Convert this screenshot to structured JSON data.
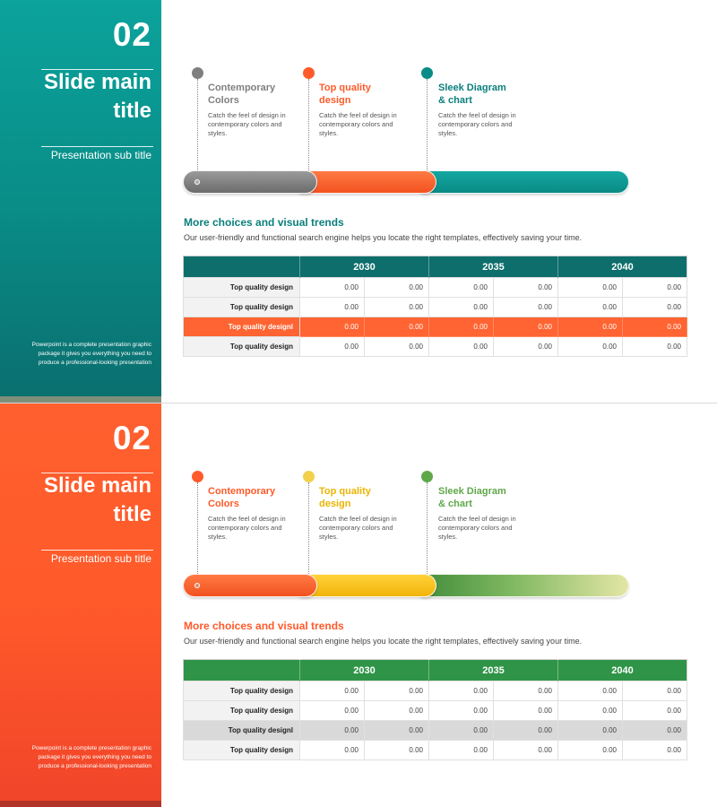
{
  "slides": [
    {
      "number": "02",
      "main_title": "Slide main title",
      "sub_title": "Presentation sub title",
      "blurb": "Powerpoint is a complete presentation graphic package it gives you everything you need to produce a professional-looking presentation",
      "colors": {
        "milestone_1": "#7f7f7f",
        "milestone_2": "#ff5a2a",
        "milestone_3": "#0a8b86",
        "header": "#0e6e6c",
        "highlight_row": "#ff6432",
        "section_title": "#0a7f7c"
      },
      "milestones": [
        {
          "title_line1": "Contemporary",
          "title_line2": "Colors",
          "desc": "Catch the feel of design in contemporary colors and styles."
        },
        {
          "title_line1": "Top quality",
          "title_line2": "design",
          "desc": "Catch the feel of design in contemporary colors and styles."
        },
        {
          "title_line1": "Sleek Diagram",
          "title_line2": "& chart",
          "desc": "Catch the feel of design in contemporary colors and styles."
        }
      ],
      "section_title": "More choices and visual trends",
      "section_desc": "Our user-friendly and functional search engine helps you locate the right templates, effectively saving your time.",
      "table": {
        "years": [
          "2030",
          "2035",
          "2040"
        ],
        "rows": [
          {
            "label": "Top quality design",
            "values": [
              "0.00",
              "0.00",
              "0.00",
              "0.00",
              "0.00",
              "0.00"
            ]
          },
          {
            "label": "Top quality design",
            "values": [
              "0.00",
              "0.00",
              "0.00",
              "0.00",
              "0.00",
              "0.00"
            ]
          },
          {
            "label": "Top quality designl",
            "values": [
              "0.00",
              "0.00",
              "0.00",
              "0.00",
              "0.00",
              "0.00"
            ]
          },
          {
            "label": "Top quality design",
            "values": [
              "0.00",
              "0.00",
              "0.00",
              "0.00",
              "0.00",
              "0.00"
            ]
          }
        ]
      }
    },
    {
      "number": "02",
      "main_title": "Slide main title",
      "sub_title": "Presentation sub title",
      "blurb": "Powerpoint is a complete presentation graphic package it gives you everything you need to produce a professional-looking presentation",
      "colors": {
        "milestone_1": "#ff5a2a",
        "milestone_2": "#f2c21b",
        "milestone_3": "#5fa84a",
        "header": "#2f9447",
        "highlight_row": "#d9d9d9",
        "section_title": "#ff5a2a"
      },
      "milestones": [
        {
          "title_line1": "Contemporary",
          "title_line2": "Colors",
          "desc": "Catch the feel of design in contemporary colors and styles."
        },
        {
          "title_line1": "Top quality",
          "title_line2": "design",
          "desc": "Catch the feel of design in contemporary colors and styles."
        },
        {
          "title_line1": "Sleek Diagram",
          "title_line2": "& chart",
          "desc": "Catch the feel of design in contemporary colors and styles."
        }
      ],
      "section_title": "More choices and visual trends",
      "section_desc": "Our user-friendly and functional search engine helps you locate the right templates, effectively saving your time.",
      "table": {
        "years": [
          "2030",
          "2035",
          "2040"
        ],
        "rows": [
          {
            "label": "Top quality design",
            "values": [
              "0.00",
              "0.00",
              "0.00",
              "0.00",
              "0.00",
              "0.00"
            ]
          },
          {
            "label": "Top quality design",
            "values": [
              "0.00",
              "0.00",
              "0.00",
              "0.00",
              "0.00",
              "0.00"
            ]
          },
          {
            "label": "Top quality designl",
            "values": [
              "0.00",
              "0.00",
              "0.00",
              "0.00",
              "0.00",
              "0.00"
            ]
          },
          {
            "label": "Top quality design",
            "values": [
              "0.00",
              "0.00",
              "0.00",
              "0.00",
              "0.00",
              "0.00"
            ]
          }
        ]
      }
    }
  ]
}
